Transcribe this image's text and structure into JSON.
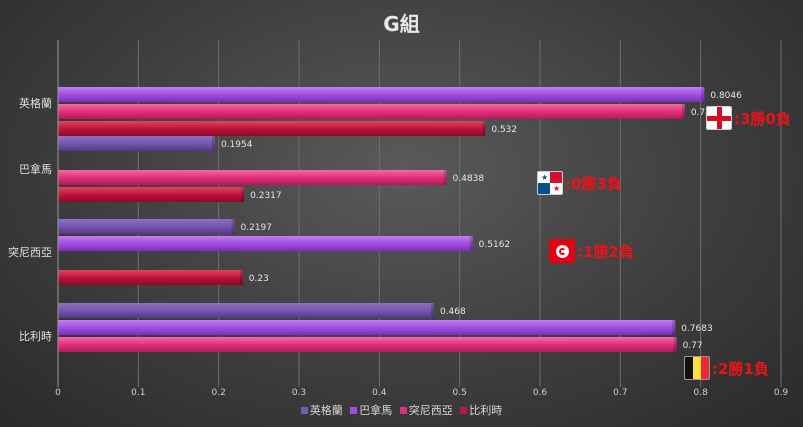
{
  "chart_data": {
    "type": "bar",
    "orientation": "horizontal",
    "title": "G組",
    "categories": [
      "英格蘭",
      "巴拿馬",
      "突尼西亞",
      "比利時"
    ],
    "series": [
      {
        "name": "英格蘭",
        "color": "#7a5bb0",
        "values": [
          null,
          0.1954,
          0.2197,
          0.468
        ]
      },
      {
        "name": "巴拿馬",
        "color": "#a050e0",
        "values": [
          0.8046,
          null,
          0.5162,
          0.7683
        ]
      },
      {
        "name": "突尼西亞",
        "color": "#e0307c",
        "values": [
          0.7803,
          0.4838,
          null,
          0.77
        ]
      },
      {
        "name": "比利時",
        "color": "#c0143c",
        "values": [
          0.532,
          0.2317,
          0.23,
          null
        ]
      }
    ],
    "data_labels": [
      [
        null,
        "0.8046",
        "0.7803",
        "0.532"
      ],
      [
        "0.1954",
        null,
        "0.4838",
        "0.2317"
      ],
      [
        "0.2197",
        "0.5162",
        null,
        "0.23"
      ],
      [
        "0.468",
        "0.7683",
        "0.77",
        null
      ]
    ],
    "xlim": [
      0,
      0.9
    ],
    "xticks": [
      "0",
      "0.1",
      "0.2",
      "0.3",
      "0.4",
      "0.5",
      "0.6",
      "0.7",
      "0.8",
      "0.9"
    ],
    "grid": true,
    "legend_position": "bottom"
  },
  "annotations": [
    {
      "flag": "england-flag",
      "text": ":3勝0負"
    },
    {
      "flag": "panama-flag",
      "text": ":0勝3負"
    },
    {
      "flag": "tunisia-flag",
      "text": ":1勝2負"
    },
    {
      "flag": "belgium-flag",
      "text": ":2勝1負"
    }
  ]
}
